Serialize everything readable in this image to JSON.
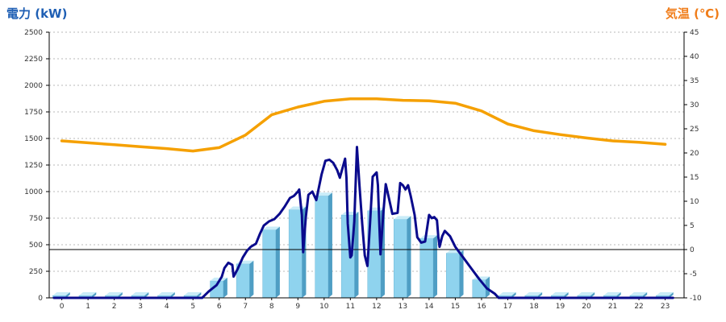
{
  "colors": {
    "power_title": "#1f5fb4",
    "temp_title": "#f07d1a",
    "bar_front": "#8fd3ee",
    "bar_side": "#4f9ec4",
    "bar_top": "#c9ecf8",
    "power_line": "#0a0a8c",
    "temp_line": "#f5a000",
    "grid": "#b8b8b8",
    "axis": "#000000"
  },
  "chart_data": {
    "type": "bar",
    "title_left": "電力 (kW)",
    "title_right": "気温 (℃)",
    "categories": [
      "0",
      "1",
      "2",
      "3",
      "4",
      "5",
      "6",
      "7",
      "8",
      "9",
      "10",
      "11",
      "12",
      "13",
      "14",
      "15",
      "16",
      "17",
      "18",
      "19",
      "20",
      "21",
      "22",
      "23"
    ],
    "y_left": {
      "min": 0,
      "max": 2500,
      "ticks": [
        "0",
        "250",
        "500",
        "750",
        "1000",
        "1250",
        "1500",
        "1750",
        "2000",
        "2250",
        "2500"
      ]
    },
    "y_right": {
      "min": -10,
      "max": 45,
      "ticks": [
        "-10",
        "-5",
        "0",
        "5",
        "10",
        "15",
        "20",
        "25",
        "30",
        "35",
        "40",
        "45"
      ]
    },
    "grid": true,
    "series": [
      {
        "kind": "bar",
        "axis": "left",
        "values": [
          0,
          0,
          0,
          0,
          0,
          0,
          160,
          320,
          640,
          830,
          960,
          780,
          820,
          740,
          560,
          420,
          170,
          0,
          0,
          0,
          0,
          0,
          0,
          0
        ]
      },
      {
        "kind": "line",
        "axis": "left",
        "points": [
          [
            -0.3,
            0
          ],
          [
            5.35,
            0
          ],
          [
            5.6,
            60
          ],
          [
            5.9,
            120
          ],
          [
            6.1,
            200
          ],
          [
            6.2,
            280
          ],
          [
            6.35,
            330
          ],
          [
            6.5,
            310
          ],
          [
            6.55,
            200
          ],
          [
            6.7,
            270
          ],
          [
            6.9,
            380
          ],
          [
            7.05,
            440
          ],
          [
            7.2,
            480
          ],
          [
            7.4,
            510
          ],
          [
            7.55,
            600
          ],
          [
            7.7,
            680
          ],
          [
            7.9,
            720
          ],
          [
            8.1,
            740
          ],
          [
            8.3,
            790
          ],
          [
            8.5,
            860
          ],
          [
            8.7,
            940
          ],
          [
            8.85,
            960
          ],
          [
            9.0,
            1000
          ],
          [
            9.05,
            1020
          ],
          [
            9.15,
            780
          ],
          [
            9.2,
            430
          ],
          [
            9.3,
            760
          ],
          [
            9.4,
            970
          ],
          [
            9.55,
            1000
          ],
          [
            9.7,
            920
          ],
          [
            9.9,
            1160
          ],
          [
            10.05,
            1290
          ],
          [
            10.2,
            1300
          ],
          [
            10.35,
            1270
          ],
          [
            10.5,
            1200
          ],
          [
            10.6,
            1130
          ],
          [
            10.8,
            1310
          ],
          [
            10.85,
            1130
          ],
          [
            10.9,
            700
          ],
          [
            11.0,
            380
          ],
          [
            11.05,
            400
          ],
          [
            11.15,
            720
          ],
          [
            11.25,
            1420
          ],
          [
            11.35,
            1050
          ],
          [
            11.45,
            700
          ],
          [
            11.55,
            400
          ],
          [
            11.65,
            300
          ],
          [
            11.75,
            700
          ],
          [
            11.85,
            1140
          ],
          [
            12.0,
            1180
          ],
          [
            12.05,
            1060
          ],
          [
            12.1,
            720
          ],
          [
            12.15,
            410
          ],
          [
            12.25,
            780
          ],
          [
            12.35,
            1070
          ],
          [
            12.45,
            960
          ],
          [
            12.6,
            790
          ],
          [
            12.8,
            800
          ],
          [
            12.9,
            1080
          ],
          [
            13.0,
            1060
          ],
          [
            13.1,
            1020
          ],
          [
            13.2,
            1060
          ],
          [
            13.3,
            960
          ],
          [
            13.45,
            780
          ],
          [
            13.55,
            570
          ],
          [
            13.7,
            520
          ],
          [
            13.85,
            530
          ],
          [
            14.0,
            780
          ],
          [
            14.1,
            750
          ],
          [
            14.2,
            760
          ],
          [
            14.3,
            730
          ],
          [
            14.35,
            580
          ],
          [
            14.4,
            480
          ],
          [
            14.5,
            580
          ],
          [
            14.6,
            630
          ],
          [
            14.8,
            580
          ],
          [
            15.0,
            480
          ],
          [
            15.3,
            380
          ],
          [
            15.6,
            280
          ],
          [
            15.9,
            180
          ],
          [
            16.2,
            90
          ],
          [
            16.5,
            40
          ],
          [
            16.65,
            0
          ],
          [
            23.3,
            0
          ]
        ]
      },
      {
        "kind": "line",
        "axis": "right",
        "points": [
          [
            0,
            22.5
          ],
          [
            1,
            22.1
          ],
          [
            2,
            21.7
          ],
          [
            3,
            21.3
          ],
          [
            4,
            20.9
          ],
          [
            5,
            20.4
          ],
          [
            6,
            21.1
          ],
          [
            7,
            23.7
          ],
          [
            8,
            27.9
          ],
          [
            9,
            29.5
          ],
          [
            10,
            30.7
          ],
          [
            11,
            31.2
          ],
          [
            12,
            31.2
          ],
          [
            13,
            30.9
          ],
          [
            14,
            30.8
          ],
          [
            15,
            30.3
          ],
          [
            16,
            28.7
          ],
          [
            17,
            26.0
          ],
          [
            18,
            24.6
          ],
          [
            19,
            23.8
          ],
          [
            20,
            23.1
          ],
          [
            21,
            22.5
          ],
          [
            22,
            22.2
          ],
          [
            23,
            21.8
          ]
        ]
      }
    ]
  }
}
